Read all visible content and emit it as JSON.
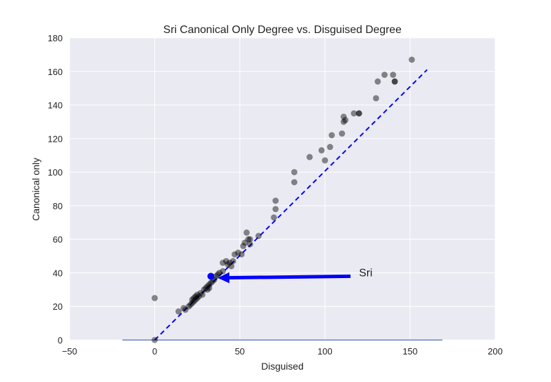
{
  "chart_data": {
    "type": "scatter",
    "title": "Sri Canonical Only Degree vs. Disguised Degree",
    "xlabel": "Disguised",
    "ylabel": "Canonical only",
    "xlim": [
      -50,
      200
    ],
    "ylim": [
      0,
      180
    ],
    "xticks": [
      -50,
      0,
      50,
      100,
      150,
      200
    ],
    "yticks": [
      0,
      20,
      40,
      60,
      80,
      100,
      120,
      140,
      160,
      180
    ],
    "grid": true,
    "background": "#eaeaf2",
    "point_color": "#000000",
    "point_opacity": 0.45,
    "points": [
      [
        0,
        25
      ],
      [
        0,
        0
      ],
      [
        14,
        17
      ],
      [
        17,
        19
      ],
      [
        18,
        18
      ],
      [
        20,
        20
      ],
      [
        21,
        21
      ],
      [
        22,
        22
      ],
      [
        22,
        24
      ],
      [
        23,
        23
      ],
      [
        23,
        25
      ],
      [
        24,
        26
      ],
      [
        24,
        24
      ],
      [
        25,
        25
      ],
      [
        25,
        27
      ],
      [
        26,
        26
      ],
      [
        27,
        28
      ],
      [
        28,
        27
      ],
      [
        29,
        30
      ],
      [
        30,
        31
      ],
      [
        31,
        32
      ],
      [
        31,
        30
      ],
      [
        32,
        31
      ],
      [
        32,
        33
      ],
      [
        33,
        34
      ],
      [
        34,
        35
      ],
      [
        35,
        36
      ],
      [
        36,
        38
      ],
      [
        37,
        39
      ],
      [
        38,
        40
      ],
      [
        40,
        46
      ],
      [
        40,
        41
      ],
      [
        42,
        47
      ],
      [
        43,
        45
      ],
      [
        44,
        46
      ],
      [
        45,
        44
      ],
      [
        46,
        47
      ],
      [
        47,
        51
      ],
      [
        49,
        52
      ],
      [
        51,
        51
      ],
      [
        52,
        56
      ],
      [
        53,
        58
      ],
      [
        54,
        64
      ],
      [
        55,
        60
      ],
      [
        56,
        60
      ],
      [
        56,
        57
      ],
      [
        61,
        62
      ],
      [
        70,
        73
      ],
      [
        71,
        78
      ],
      [
        71,
        83
      ],
      [
        82,
        94
      ],
      [
        82,
        100
      ],
      [
        91,
        109
      ],
      [
        98,
        113
      ],
      [
        100,
        107
      ],
      [
        103,
        115
      ],
      [
        104,
        122
      ],
      [
        110,
        123
      ],
      [
        111,
        130
      ],
      [
        111,
        133
      ],
      [
        112,
        131
      ],
      [
        117,
        135
      ],
      [
        120,
        135
      ],
      [
        120,
        135
      ],
      [
        130,
        144
      ],
      [
        131,
        154
      ],
      [
        135,
        158
      ],
      [
        140,
        158
      ],
      [
        141,
        154
      ],
      [
        141,
        154
      ],
      [
        151,
        167
      ]
    ],
    "identity_line": {
      "from": [
        0,
        0
      ],
      "to": [
        160,
        161
      ],
      "color": "#0000ff",
      "style": "dashed"
    },
    "baseline": {
      "from": [
        -19,
        0
      ],
      "to": [
        169,
        0
      ],
      "color": "#4c72b0"
    },
    "highlight": {
      "x": 33,
      "y": 38,
      "color": "#0000ff"
    },
    "annotation": {
      "text": "Sri",
      "text_x": 120,
      "text_y": 40,
      "arrow_from": [
        115,
        38
      ],
      "arrow_to": [
        37,
        37
      ],
      "color": "#0000ff"
    }
  }
}
